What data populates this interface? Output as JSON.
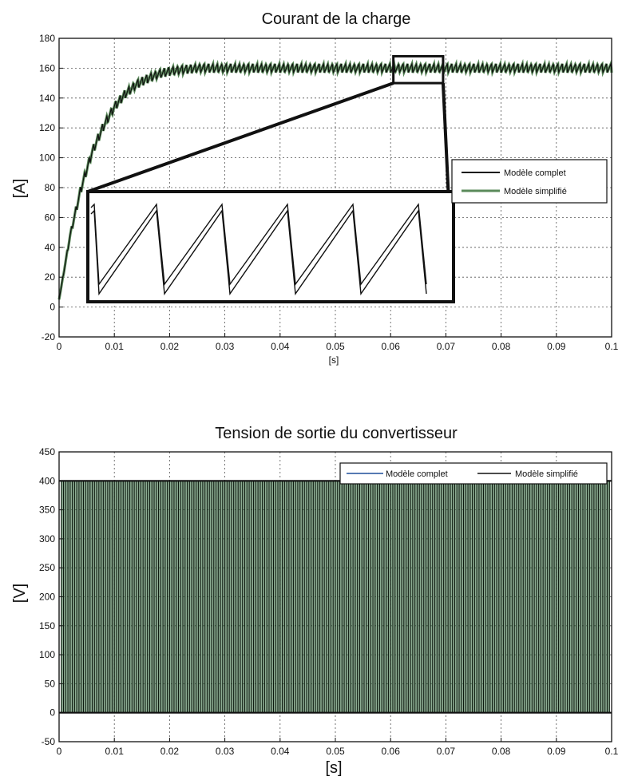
{
  "chart_data": [
    {
      "type": "line",
      "title": "Courant de la charge",
      "xlabel": "[s]",
      "ylabel": "[A]",
      "xlim": [
        0,
        0.1
      ],
      "ylim": [
        -20,
        180
      ],
      "x_ticks": [
        "0",
        "0.01",
        "0.02",
        "0.03",
        "0.04",
        "0.05",
        "0.06",
        "0.07",
        "0.08",
        "0.09",
        "0.1"
      ],
      "y_ticks": [
        "-20",
        "0",
        "20",
        "40",
        "60",
        "80",
        "100",
        "120",
        "140",
        "160",
        "180"
      ],
      "grid": true,
      "legend_position": "right",
      "series": [
        {
          "name": "Modèle complet",
          "color": "#111111",
          "x": [
            0,
            0.002,
            0.004,
            0.006,
            0.008,
            0.01,
            0.012,
            0.014,
            0.016,
            0.018,
            0.02,
            0.025,
            0.03,
            0.04,
            0.05,
            0.06,
            0.07,
            0.08,
            0.09,
            0.1
          ],
          "y": [
            5,
            48,
            80,
            104,
            121,
            134,
            143,
            149,
            153,
            156,
            158,
            160,
            160,
            160,
            160,
            160,
            160,
            160,
            160,
            160
          ],
          "ripple_amplitude": 3,
          "ripple_period": 0.0008
        },
        {
          "name": "Modèle simplifié",
          "color": "#5a8a5a",
          "x": [
            0,
            0.002,
            0.004,
            0.006,
            0.008,
            0.01,
            0.012,
            0.014,
            0.016,
            0.018,
            0.02,
            0.025,
            0.03,
            0.04,
            0.05,
            0.06,
            0.07,
            0.08,
            0.09,
            0.1
          ],
          "y": [
            5,
            48,
            80,
            104,
            121,
            134,
            143,
            149,
            153,
            156,
            158,
            160,
            160,
            160,
            160,
            160,
            160,
            160,
            160,
            160
          ],
          "ripple_amplitude": 3,
          "ripple_period": 0.0008
        }
      ],
      "zoom_region": {
        "x": [
          0.0605,
          0.0695
        ],
        "y": [
          150,
          168
        ]
      }
    },
    {
      "type": "line",
      "title": "Tension de sortie du convertisseur",
      "xlabel": "[s]",
      "ylabel": "[V]",
      "xlim": [
        0,
        0.1
      ],
      "ylim": [
        -50,
        450
      ],
      "x_ticks": [
        "0",
        "0.01",
        "0.02",
        "0.03",
        "0.04",
        "0.05",
        "0.06",
        "0.07",
        "0.08",
        "0.09",
        "0.1"
      ],
      "y_ticks": [
        "-50",
        "0",
        "50",
        "100",
        "150",
        "200",
        "250",
        "300",
        "350",
        "400",
        "450"
      ],
      "grid": true,
      "legend_position": "top-right",
      "series": [
        {
          "name": "Modèle complet",
          "color": "#1f4e9a"
        },
        {
          "name": "Modèle simplifié",
          "color": "#111111"
        }
      ],
      "pwm_levels": [
        0,
        400
      ],
      "pwm_period": 0.0008,
      "fill_color": "#2f6a3a"
    }
  ]
}
